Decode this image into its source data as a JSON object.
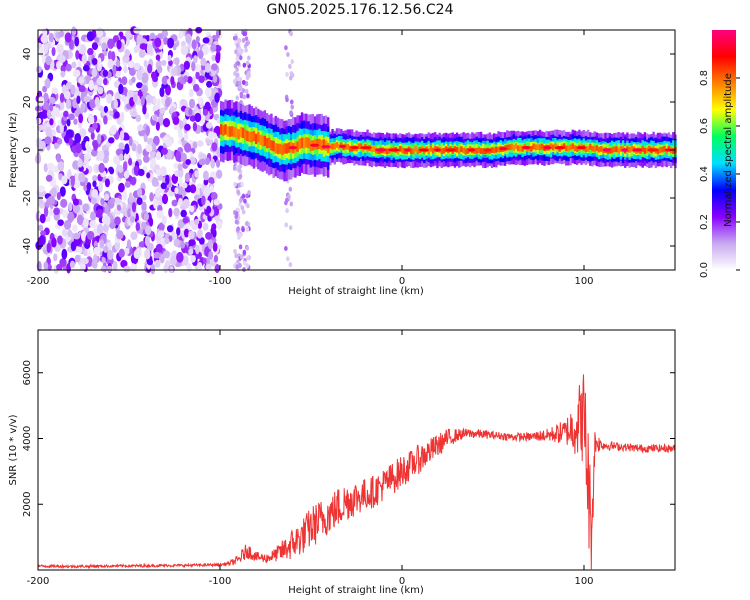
{
  "title": "GN05.2025.176.12.56.C24",
  "chart_data": [
    {
      "type": "heatmap",
      "xlabel": "Height of straight line (km)",
      "ylabel": "Frequency (Hz)",
      "xlim": [
        -200,
        150
      ],
      "ylim": [
        -50,
        50
      ],
      "xticks": [
        "-200",
        "-100",
        "0",
        "100"
      ],
      "xtick_values": [
        -200,
        -100,
        0,
        100
      ],
      "yticks": [
        "-40",
        "-20",
        "0",
        "20",
        "40"
      ],
      "ytick_values": [
        -40,
        -20,
        0,
        20,
        40
      ],
      "colorbar": {
        "label": "Normalized spectral amplitude",
        "range": [
          0,
          1
        ],
        "ticks": [
          "0.0",
          "0.2",
          "0.4",
          "0.6",
          "0.8"
        ],
        "tick_values": [
          0.0,
          0.2,
          0.4,
          0.6,
          0.8
        ],
        "colors": [
          "#ffffff",
          "#c8a8f0",
          "#8800ff",
          "#0000ff",
          "#00e0ff",
          "#00ff60",
          "#ffff00",
          "#ff8000",
          "#ff0000",
          "#ff0080"
        ]
      },
      "ridge": {
        "x": [
          -100,
          -95,
          -90,
          -85,
          -80,
          -75,
          -70,
          -65,
          -60,
          -55,
          -50,
          -45,
          -40,
          -35,
          -30,
          -25,
          -20,
          -15,
          -10,
          -5,
          0,
          10,
          20,
          30,
          40,
          50,
          60,
          70,
          80,
          90,
          100,
          110,
          120,
          130,
          140,
          150
        ],
        "y": [
          8,
          8,
          7,
          6,
          5,
          3,
          1,
          0,
          1,
          3,
          2,
          2,
          1,
          2,
          1,
          1,
          1,
          0,
          0,
          0,
          0,
          0,
          0,
          0,
          0,
          0,
          1,
          1,
          1,
          1,
          1,
          0,
          0,
          0,
          0,
          0
        ]
      },
      "noise_region_x": [
        -200,
        -100
      ]
    },
    {
      "type": "line",
      "xlabel": "Height of straight line (km)",
      "ylabel": "SNR (10 * v/v)",
      "xlim": [
        -200,
        150
      ],
      "ylim": [
        0,
        7300
      ],
      "xticks": [
        "-200",
        "-100",
        "0",
        "100"
      ],
      "xtick_values": [
        -200,
        -100,
        0,
        100
      ],
      "yticks": [
        "2000",
        "4000",
        "6000"
      ],
      "ytick_values": [
        2000,
        4000,
        6000
      ],
      "series": [
        {
          "color": "#ee3333",
          "x": [
            -200,
            -180,
            -160,
            -140,
            -120,
            -100,
            -95,
            -90,
            -85,
            -80,
            -75,
            -70,
            -65,
            -60,
            -55,
            -50,
            -45,
            -40,
            -35,
            -30,
            -25,
            -20,
            -15,
            -10,
            -5,
            0,
            5,
            10,
            15,
            20,
            25,
            30,
            35,
            40,
            50,
            60,
            70,
            80,
            90,
            95,
            100,
            102,
            104,
            106,
            110,
            120,
            130,
            140,
            150
          ],
          "y": [
            120,
            110,
            120,
            130,
            140,
            160,
            200,
            300,
            600,
            400,
            350,
            450,
            600,
            800,
            1000,
            1300,
            1500,
            1700,
            1900,
            2100,
            2200,
            2300,
            2400,
            2600,
            2800,
            3000,
            3200,
            3400,
            3600,
            3800,
            4000,
            4100,
            4150,
            4150,
            4100,
            4050,
            4050,
            4100,
            4200,
            4400,
            4700,
            3000,
            1000,
            3900,
            3800,
            3750,
            3700,
            3700,
            3700
          ],
          "jitter": [
            40,
            40,
            40,
            40,
            40,
            40,
            60,
            150,
            250,
            150,
            150,
            200,
            350,
            500,
            550,
            650,
            650,
            600,
            650,
            600,
            550,
            500,
            500,
            500,
            500,
            500,
            450,
            450,
            400,
            350,
            300,
            200,
            150,
            150,
            120,
            120,
            130,
            200,
            400,
            900,
            1500,
            2000,
            1500,
            400,
            150,
            120,
            120,
            120,
            120
          ]
        }
      ]
    }
  ]
}
